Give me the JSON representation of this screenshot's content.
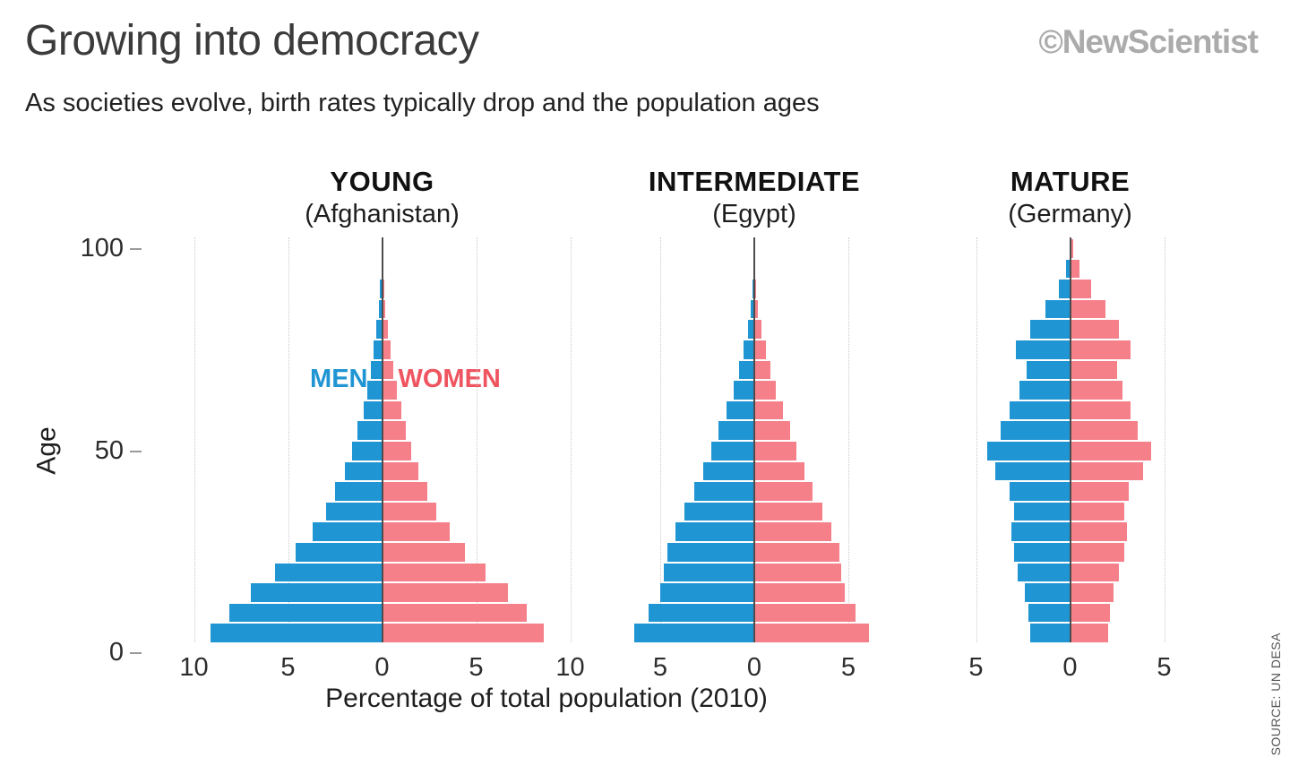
{
  "header": {
    "title": "Growing into democracy",
    "brand": "©NewScientist",
    "subtitle": "As societies evolve, birth rates typically drop and the population ages"
  },
  "labels": {
    "men": "MEN",
    "women": "WOMEN",
    "age_axis": "Age",
    "y_ticks": [
      "100",
      "50",
      "0"
    ],
    "x_axis": "Percentage of total population (2010)",
    "source": "SOURCE: UN DESA"
  },
  "colors": {
    "men_bar": "#2095d3",
    "women_bar": "#f5808a",
    "men_label": "#2095d3",
    "women_label": "#ef5560"
  },
  "chart_data": [
    {
      "type": "bar",
      "variant": "population-pyramid",
      "title": "YOUNG",
      "subtitle": "(Afghanistan)",
      "age_bands": [
        "0-4",
        "5-9",
        "10-14",
        "15-19",
        "20-24",
        "25-29",
        "30-34",
        "35-39",
        "40-44",
        "45-49",
        "50-54",
        "55-59",
        "60-64",
        "65-69",
        "70-74",
        "75-79",
        "80-84",
        "85-89",
        "90-94",
        "95-99"
      ],
      "xlabel": "Percentage of total population (2010)",
      "x_max": 10.5,
      "x_tick_values": [
        -10,
        -5,
        0,
        5,
        10
      ],
      "x_tick_labels": [
        "10",
        "5",
        "0",
        "5",
        "10"
      ],
      "series": [
        {
          "name": "Men",
          "values": [
            9.1,
            8.1,
            7.0,
            5.7,
            4.6,
            3.7,
            3.0,
            2.5,
            2.0,
            1.6,
            1.3,
            1.0,
            0.8,
            0.6,
            0.45,
            0.3,
            0.18,
            0.1,
            0.04,
            0.01
          ]
        },
        {
          "name": "Women",
          "values": [
            8.6,
            7.7,
            6.7,
            5.5,
            4.4,
            3.6,
            2.9,
            2.4,
            1.95,
            1.55,
            1.25,
            1.0,
            0.8,
            0.6,
            0.45,
            0.3,
            0.18,
            0.1,
            0.04,
            0.01
          ]
        }
      ]
    },
    {
      "type": "bar",
      "variant": "population-pyramid",
      "title": "INTERMEDIATE",
      "subtitle": "(Egypt)",
      "age_bands": [
        "0-4",
        "5-9",
        "10-14",
        "15-19",
        "20-24",
        "25-29",
        "30-34",
        "35-39",
        "40-44",
        "45-49",
        "50-54",
        "55-59",
        "60-64",
        "65-69",
        "70-74",
        "75-79",
        "80-84",
        "85-89",
        "90-94",
        "95-99"
      ],
      "xlabel": "Percentage of total population (2010)",
      "x_max": 7,
      "x_tick_values": [
        -5,
        0,
        5
      ],
      "x_tick_labels": [
        "5",
        "0",
        "5"
      ],
      "series": [
        {
          "name": "Men",
          "values": [
            6.4,
            5.6,
            5.0,
            4.8,
            4.6,
            4.2,
            3.7,
            3.2,
            2.7,
            2.3,
            1.9,
            1.5,
            1.1,
            0.8,
            0.55,
            0.35,
            0.18,
            0.08,
            0.03,
            0.01
          ]
        },
        {
          "name": "Women",
          "values": [
            6.1,
            5.4,
            4.8,
            4.6,
            4.5,
            4.1,
            3.6,
            3.1,
            2.65,
            2.25,
            1.9,
            1.5,
            1.15,
            0.85,
            0.6,
            0.4,
            0.2,
            0.1,
            0.03,
            0.01
          ]
        }
      ]
    },
    {
      "type": "bar",
      "variant": "population-pyramid",
      "title": "MATURE",
      "subtitle": "(Germany)",
      "age_bands": [
        "0-4",
        "5-9",
        "10-14",
        "15-19",
        "20-24",
        "25-29",
        "30-34",
        "35-39",
        "40-44",
        "45-49",
        "50-54",
        "55-59",
        "60-64",
        "65-69",
        "70-74",
        "75-79",
        "80-84",
        "85-89",
        "90-94",
        "95-99"
      ],
      "xlabel": "Percentage of total population (2010)",
      "x_max": 7.5,
      "x_tick_values": [
        -5,
        0,
        5
      ],
      "x_tick_labels": [
        "5",
        "0",
        "5"
      ],
      "series": [
        {
          "name": "Men",
          "values": [
            2.1,
            2.2,
            2.4,
            2.8,
            3.0,
            3.1,
            3.0,
            3.2,
            4.0,
            4.4,
            3.7,
            3.2,
            2.7,
            2.3,
            2.9,
            2.1,
            1.3,
            0.6,
            0.2,
            0.04
          ]
        },
        {
          "name": "Women",
          "values": [
            2.0,
            2.1,
            2.3,
            2.6,
            2.9,
            3.0,
            2.9,
            3.1,
            3.9,
            4.3,
            3.6,
            3.2,
            2.8,
            2.5,
            3.2,
            2.6,
            1.9,
            1.1,
            0.5,
            0.15
          ]
        }
      ]
    }
  ]
}
